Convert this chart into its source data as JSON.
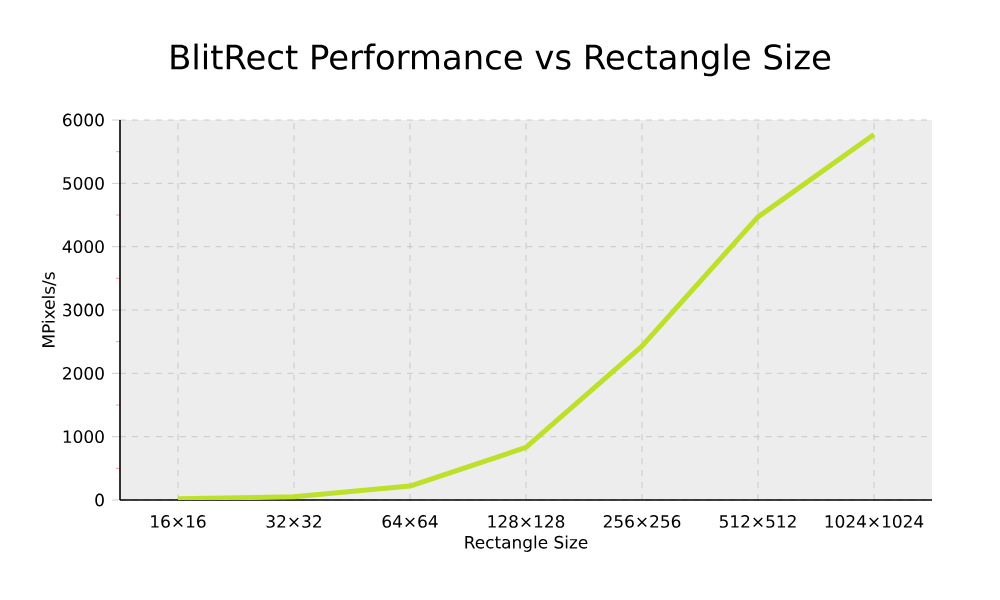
{
  "chart_data": {
    "type": "line",
    "title": "BlitRect Performance vs Rectangle Size",
    "xlabel": "Rectangle Size",
    "ylabel": "MPixels/s",
    "categories": [
      "16×16",
      "32×32",
      "64×64",
      "128×128",
      "256×256",
      "512×512",
      "1024×1024"
    ],
    "series": [
      {
        "color": "#bde02a",
        "values": [
          20,
          50,
          220,
          830,
          2430,
          4470,
          5770
        ]
      }
    ],
    "ylim": [
      0,
      6000
    ],
    "yticks": [
      0,
      1000,
      2000,
      3000,
      4000,
      5000,
      6000
    ],
    "grid": true,
    "marker": "none",
    "line_style": "solid"
  }
}
